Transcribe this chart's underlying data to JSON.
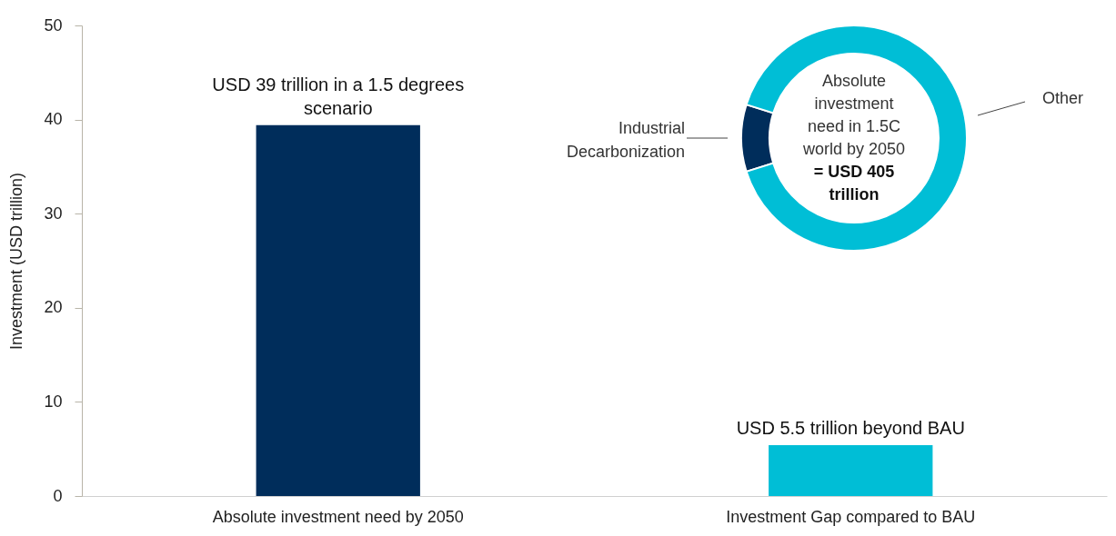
{
  "chart_data": [
    {
      "type": "bar",
      "ylabel": "Investment (USD trillion)",
      "categories": [
        "Absolute investment need by 2050",
        "Investment Gap compared to BAU"
      ],
      "values": [
        39.4,
        5.4
      ],
      "colors": [
        "#002d5b",
        "#00bed6"
      ],
      "value_labels": [
        "USD 39 trillion in a 1.5 degrees\nscenario",
        "USD 5.5 trillion beyond BAU"
      ],
      "ylim": [
        0,
        50
      ],
      "yticks": [
        0,
        10,
        20,
        30,
        40,
        50
      ],
      "grid": false,
      "legend": false
    },
    {
      "type": "donut",
      "categories": [
        "Industrial Decarbonization",
        "Other"
      ],
      "values": [
        9.6,
        90.4
      ],
      "colors": [
        "#002d5b",
        "#00bed6"
      ],
      "annotations": [
        "Absolute\ninvestment\nneed in 1.5C\nworld by 2050\n= USD 405\ntrillion"
      ],
      "legend": false
    }
  ]
}
